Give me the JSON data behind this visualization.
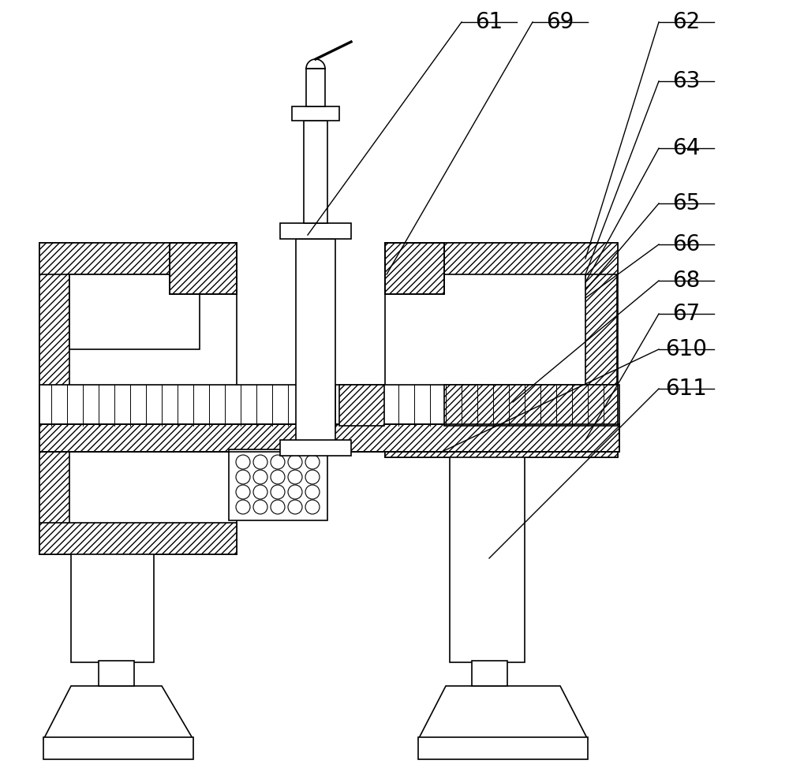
{
  "bg_color": "#ffffff",
  "line_color": "#000000",
  "lw": 1.2,
  "label_fontsize": 20,
  "figsize": [
    10.0,
    9.88
  ],
  "dpi": 100
}
